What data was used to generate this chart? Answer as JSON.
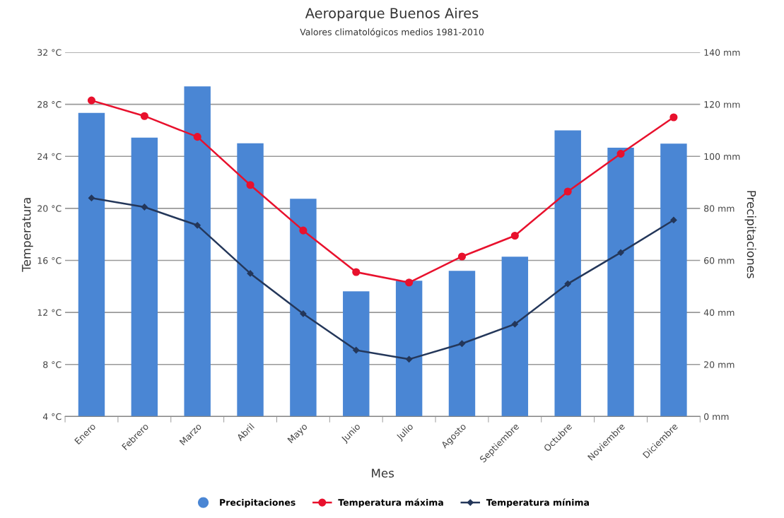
{
  "chart_data": {
    "type": "bar",
    "title": "Aeroparque Buenos Aires",
    "subtitle": "Valores climatológicos medios 1981-2010",
    "xlabel": "Mes",
    "ylabel": "Temperatura",
    "y2label": "Precipitaciones",
    "categories": [
      "Enero",
      "Febrero",
      "Marzo",
      "Abril",
      "Mayo",
      "Junio",
      "Julio",
      "Agosto",
      "Septiembre",
      "Octubre",
      "Noviembre",
      "Diciembre"
    ],
    "series": [
      {
        "name": "Precipitaciones",
        "axis": "y2",
        "color": "#4a86d4",
        "values": [
          116.7,
          107.2,
          126.9,
          105.0,
          83.7,
          48.1,
          52.2,
          56.0,
          61.4,
          110.0,
          103.3,
          104.9
        ]
      },
      {
        "name": "Temperatura máxima",
        "type": "line",
        "color": "#e8112d",
        "marker": "circle",
        "values": [
          28.3,
          27.1,
          25.5,
          21.8,
          18.3,
          15.1,
          14.3,
          16.3,
          17.9,
          21.3,
          24.2,
          27.0
        ]
      },
      {
        "name": "Temperatura mínima",
        "type": "line",
        "color": "#24375a",
        "marker": "diamond",
        "values": [
          20.8,
          20.1,
          18.7,
          15.0,
          11.9,
          9.1,
          8.4,
          9.6,
          11.1,
          14.2,
          16.6,
          19.1
        ]
      }
    ],
    "ylim": [
      4,
      32
    ],
    "yticks": [
      {
        "value": 4,
        "label": "4 °C"
      },
      {
        "value": 8,
        "label": "8 °C"
      },
      {
        "value": 12,
        "label": "12 °C"
      },
      {
        "value": 16,
        "label": "16 °C"
      },
      {
        "value": 20,
        "label": "20 °C"
      },
      {
        "value": 24,
        "label": "24 °C"
      },
      {
        "value": 28,
        "label": "28 °C"
      },
      {
        "value": 32,
        "label": "32 °C"
      }
    ],
    "y2lim": [
      0,
      140
    ],
    "y2ticks": [
      {
        "value": 0,
        "label": "0 mm"
      },
      {
        "value": 20,
        "label": "20 mm"
      },
      {
        "value": 40,
        "label": "40 mm"
      },
      {
        "value": 60,
        "label": "60 mm"
      },
      {
        "value": 80,
        "label": "80 mm"
      },
      {
        "value": 100,
        "label": "100 mm"
      },
      {
        "value": 120,
        "label": "120 mm"
      },
      {
        "value": 140,
        "label": "140 mm"
      }
    ],
    "grid": "y",
    "legend": "bottom"
  }
}
